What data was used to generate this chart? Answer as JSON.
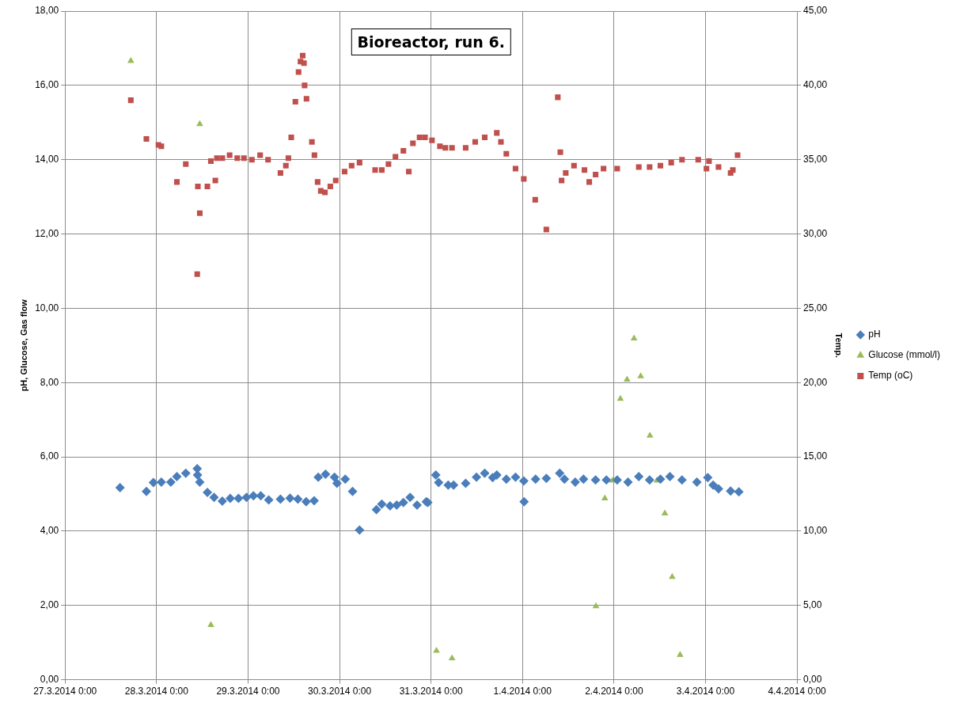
{
  "chart_data": {
    "type": "scatter",
    "title": "Bioreactor, run 6.",
    "ylabel": "pH, Glucose, Gas flow",
    "y2label": "Temp.",
    "xlim": [
      "2014-03-27",
      "2014-04-04"
    ],
    "xticks": [
      {
        "value": "2014-03-27",
        "label": "27.3.2014 0:00"
      },
      {
        "value": "2014-03-28",
        "label": "28.3.2014 0:00"
      },
      {
        "value": "2014-03-29",
        "label": "29.3.2014 0:00"
      },
      {
        "value": "2014-03-30",
        "label": "30.3.2014 0:00"
      },
      {
        "value": "2014-03-31",
        "label": "31.3.2014 0:00"
      },
      {
        "value": "2014-04-01",
        "label": "1.4.2014 0:00"
      },
      {
        "value": "2014-04-02",
        "label": "2.4.2014 0:00"
      },
      {
        "value": "2014-04-03",
        "label": "3.4.2014 0:00"
      },
      {
        "value": "2014-04-04",
        "label": "4.4.2014 0:00"
      }
    ],
    "ylim": [
      0,
      18
    ],
    "yticks": [
      {
        "value": 0,
        "label": "0,00"
      },
      {
        "value": 2,
        "label": "2,00"
      },
      {
        "value": 4,
        "label": "4,00"
      },
      {
        "value": 6,
        "label": "6,00"
      },
      {
        "value": 8,
        "label": "8,00"
      },
      {
        "value": 10,
        "label": "10,00"
      },
      {
        "value": 12,
        "label": "12,00"
      },
      {
        "value": 14,
        "label": "14,00"
      },
      {
        "value": 16,
        "label": "16,00"
      },
      {
        "value": 18,
        "label": "18,00"
      }
    ],
    "y2lim": [
      0,
      45
    ],
    "y2ticks": [
      {
        "value": 0,
        "label": "0,00"
      },
      {
        "value": 5,
        "label": "5,00"
      },
      {
        "value": 10,
        "label": "10,00"
      },
      {
        "value": 15,
        "label": "15,00"
      },
      {
        "value": 20,
        "label": "20,00"
      },
      {
        "value": 25,
        "label": "25,00"
      },
      {
        "value": 30,
        "label": "30,00"
      },
      {
        "value": 35,
        "label": "35,00"
      },
      {
        "value": 40,
        "label": "40,00"
      },
      {
        "value": 45,
        "label": "45,00"
      }
    ],
    "grid": true,
    "legend": "right",
    "series": [
      {
        "name": "pH",
        "color": "#4a7ebb",
        "marker": "diamond",
        "x": [
          "2014-03-27T14:25",
          "2014-03-27T21:20",
          "2014-03-27T23:10",
          "2014-03-28T01:15",
          "2014-03-28T03:45",
          "2014-03-28T05:20",
          "2014-03-28T07:40",
          "2014-03-28T10:40",
          "2014-03-28T10:45",
          "2014-03-28T11:20",
          "2014-03-28T13:20",
          "2014-03-28T15:05",
          "2014-03-28T17:15",
          "2014-03-28T19:20",
          "2014-03-28T21:30",
          "2014-03-28T23:35",
          "2014-03-29T01:25",
          "2014-03-29T03:20",
          "2014-03-29T05:25",
          "2014-03-29T08:30",
          "2014-03-29T11:00",
          "2014-03-29T13:05",
          "2014-03-29T15:15",
          "2014-03-29T17:20",
          "2014-03-29T18:25",
          "2014-03-29T20:20",
          "2014-03-29T22:40",
          "2014-03-29T23:20",
          "2014-03-30T01:30",
          "2014-03-30T03:25",
          "2014-03-30T05:15",
          "2014-03-30T09:40",
          "2014-03-30T11:05",
          "2014-03-30T13:15",
          "2014-03-30T15:00",
          "2014-03-30T16:45",
          "2014-03-30T18:30",
          "2014-03-30T20:20",
          "2014-03-30T22:45",
          "2014-03-30T23:10",
          "2014-03-31T01:15",
          "2014-03-31T02:00",
          "2014-03-31T04:30",
          "2014-03-31T05:55",
          "2014-03-31T09:05",
          "2014-03-31T11:55",
          "2014-03-31T14:05",
          "2014-03-31T16:10",
          "2014-03-31T17:15",
          "2014-03-31T19:45",
          "2014-03-31T22:10",
          "2014-04-01T00:20",
          "2014-04-01T00:25",
          "2014-04-01T03:25",
          "2014-04-01T06:15",
          "2014-04-01T09:45",
          "2014-04-01T11:00",
          "2014-04-01T13:50",
          "2014-04-01T16:00",
          "2014-04-01T19:10",
          "2014-04-01T22:00",
          "2014-04-02T00:50",
          "2014-04-02T03:40",
          "2014-04-02T06:30",
          "2014-04-02T09:20",
          "2014-04-02T12:10",
          "2014-04-02T14:40",
          "2014-04-02T17:50",
          "2014-04-02T21:45",
          "2014-04-03T00:35",
          "2014-04-03T02:00",
          "2014-04-03T03:25",
          "2014-04-03T06:35",
          "2014-04-03T08:45"
        ],
        "values": [
          5.17,
          5.07,
          5.31,
          5.32,
          5.32,
          5.47,
          5.56,
          5.68,
          5.51,
          5.32,
          5.04,
          4.91,
          4.81,
          4.88,
          4.88,
          4.91,
          4.95,
          4.95,
          4.84,
          4.86,
          4.89,
          4.86,
          4.79,
          4.82,
          5.45,
          5.53,
          5.45,
          5.29,
          5.4,
          5.07,
          4.03,
          4.58,
          4.73,
          4.68,
          4.7,
          4.77,
          4.91,
          4.7,
          4.79,
          4.77,
          5.51,
          5.31,
          5.24,
          5.24,
          5.29,
          5.45,
          5.56,
          5.44,
          5.51,
          5.4,
          5.45,
          5.35,
          4.79,
          5.4,
          5.42,
          5.56,
          5.4,
          5.32,
          5.4,
          5.38,
          5.38,
          5.38,
          5.32,
          5.47,
          5.38,
          5.4,
          5.47,
          5.38,
          5.32,
          5.44,
          5.24,
          5.14,
          5.08,
          5.06
        ]
      },
      {
        "name": "Glucose (mmol/l)",
        "color": "#9bbb59",
        "marker": "triangle",
        "x": [
          "2014-03-27T17:15",
          "2014-03-28T11:20",
          "2014-03-28T14:15",
          "2014-03-31T01:25",
          "2014-03-31T05:30",
          "2014-04-01T19:15",
          "2014-04-01T21:35",
          "2014-04-01T23:35",
          "2014-04-02T01:40",
          "2014-04-02T03:25",
          "2014-04-02T05:15",
          "2014-04-02T07:00",
          "2014-04-02T09:25",
          "2014-04-02T11:15",
          "2014-04-02T13:20",
          "2014-04-02T15:15",
          "2014-04-02T17:20"
        ],
        "values": [
          16.66,
          14.96,
          1.47,
          0.78,
          0.58,
          1.98,
          4.88,
          5.36,
          7.56,
          8.08,
          9.19,
          8.17,
          6.57,
          5.36,
          4.48,
          2.77,
          0.67
        ]
      },
      {
        "name": "Temp (oC)",
        "color": "#c0504d",
        "marker": "square",
        "axis": "y2",
        "x": [
          "2014-03-27T17:15",
          "2014-03-27T21:20",
          "2014-03-28T00:30",
          "2014-03-28T01:15",
          "2014-03-28T05:20",
          "2014-03-28T07:40",
          "2014-03-28T10:40",
          "2014-03-28T10:50",
          "2014-03-28T11:20",
          "2014-03-28T13:20",
          "2014-03-28T14:15",
          "2014-03-28T15:25",
          "2014-03-28T15:50",
          "2014-03-28T17:15",
          "2014-03-28T19:10",
          "2014-03-28T21:10",
          "2014-03-28T22:55",
          "2014-03-29T01:00",
          "2014-03-29T03:10",
          "2014-03-29T05:15",
          "2014-03-29T08:30",
          "2014-03-29T09:55",
          "2014-03-29T10:35",
          "2014-03-29T11:20",
          "2014-03-29T12:25",
          "2014-03-29T13:15",
          "2014-03-29T13:45",
          "2014-03-29T14:20",
          "2014-03-29T14:40",
          "2014-03-29T14:50",
          "2014-03-29T15:20",
          "2014-03-29T16:45",
          "2014-03-29T17:25",
          "2014-03-29T18:15",
          "2014-03-29T19:05",
          "2014-03-29T20:10",
          "2014-03-29T21:35",
          "2014-03-29T23:00",
          "2014-03-30T01:20",
          "2014-03-30T03:10",
          "2014-03-30T05:15",
          "2014-03-30T09:20",
          "2014-03-30T11:05",
          "2014-03-30T12:50",
          "2014-03-30T14:40",
          "2014-03-30T16:45",
          "2014-03-30T18:10",
          "2014-03-30T19:15",
          "2014-03-30T21:00",
          "2014-03-30T22:25",
          "2014-03-31T00:15",
          "2014-03-31T02:20",
          "2014-03-31T03:45",
          "2014-03-31T05:30",
          "2014-03-31T09:05",
          "2014-03-31T11:35",
          "2014-03-31T14:05",
          "2014-03-31T17:15",
          "2014-03-31T18:20",
          "2014-03-31T19:45",
          "2014-03-31T22:10",
          "2014-04-01T00:20",
          "2014-04-01T03:20",
          "2014-04-01T06:15",
          "2014-04-01T09:15",
          "2014-04-01T09:55",
          "2014-04-01T10:15",
          "2014-04-01T11:20",
          "2014-04-01T13:30",
          "2014-04-01T16:15",
          "2014-04-01T17:30",
          "2014-04-01T19:10",
          "2014-04-01T21:15",
          "2014-04-02T00:50",
          "2014-04-02T06:30",
          "2014-04-02T09:20",
          "2014-04-02T12:10",
          "2014-04-02T15:00",
          "2014-04-02T17:50",
          "2014-04-02T22:05",
          "2014-04-03T00:15",
          "2014-04-03T00:55",
          "2014-04-03T03:25",
          "2014-04-03T06:35",
          "2014-04-03T07:10",
          "2014-04-03T08:25"
        ],
        "values": [
          39.0,
          36.4,
          36.0,
          35.9,
          33.5,
          34.7,
          27.3,
          33.2,
          31.4,
          33.2,
          34.9,
          33.6,
          35.1,
          35.1,
          35.3,
          35.1,
          35.1,
          35.0,
          35.3,
          35.0,
          34.1,
          34.6,
          35.1,
          36.5,
          38.9,
          40.9,
          41.6,
          42.0,
          41.5,
          40.0,
          39.1,
          36.2,
          35.3,
          33.5,
          32.9,
          32.8,
          33.2,
          33.6,
          34.2,
          34.6,
          34.8,
          34.3,
          34.3,
          34.7,
          35.2,
          35.6,
          34.2,
          36.1,
          36.5,
          36.5,
          36.3,
          35.9,
          35.8,
          35.8,
          35.8,
          36.2,
          36.5,
          36.8,
          36.2,
          35.4,
          34.4,
          33.7,
          32.3,
          30.3,
          39.2,
          35.5,
          33.6,
          34.1,
          34.6,
          34.3,
          33.5,
          34.0,
          34.4,
          34.4,
          34.5,
          34.5,
          34.6,
          34.8,
          35.0,
          35.0,
          34.4,
          34.9,
          34.5,
          34.1,
          34.3,
          35.3
        ]
      }
    ]
  }
}
